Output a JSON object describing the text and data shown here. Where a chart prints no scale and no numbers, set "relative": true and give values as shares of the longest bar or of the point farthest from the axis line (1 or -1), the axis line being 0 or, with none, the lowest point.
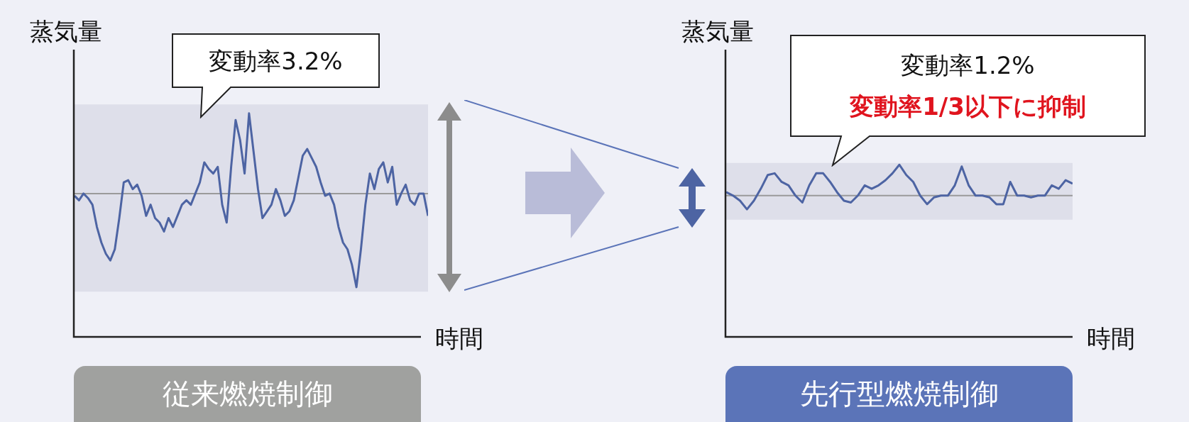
{
  "chart_data": [
    {
      "type": "line",
      "subtitle": "従来燃焼制御",
      "xlabel": "時間",
      "ylabel": "蒸気量",
      "relative": true,
      "annotations": [
        "変動率3.2%"
      ],
      "categories": [
        null,
        null,
        null,
        null,
        null,
        null,
        null,
        null,
        null,
        null,
        null,
        null,
        null,
        null,
        null,
        null,
        null,
        null,
        null,
        null,
        null,
        null,
        null,
        null,
        null,
        null,
        null,
        null,
        null,
        null,
        null,
        null,
        null,
        null,
        null,
        null,
        null,
        null,
        null,
        null,
        null,
        null,
        null,
        null,
        null,
        null,
        null,
        null,
        null,
        null,
        null,
        null,
        null,
        null,
        null,
        null,
        null,
        null,
        null,
        null,
        null,
        null,
        null,
        null,
        null,
        null,
        null,
        null,
        null,
        null,
        null,
        null,
        null,
        null,
        null,
        null,
        null,
        null,
        null,
        null
      ],
      "series": [
        {
          "color": "#4d64a3",
          "values": [
            0.63,
            0.61,
            0.64,
            0.62,
            0.59,
            0.49,
            0.42,
            0.37,
            0.34,
            0.39,
            0.53,
            0.69,
            0.7,
            0.66,
            0.68,
            0.63,
            0.54,
            0.59,
            0.53,
            0.51,
            0.47,
            0.53,
            0.49,
            0.54,
            0.59,
            0.61,
            0.59,
            0.64,
            0.69,
            0.78,
            0.75,
            0.73,
            0.76,
            0.59,
            0.51,
            0.76,
            0.97,
            0.88,
            0.73,
            1,
            0.83,
            0.66,
            0.53,
            0.56,
            0.59,
            0.66,
            0.61,
            0.54,
            0.56,
            0.61,
            0.71,
            0.81,
            0.84,
            0.8,
            0.76,
            0.69,
            0.63,
            0.64,
            0.59,
            0.49,
            0.42,
            0.39,
            0.32,
            0.22,
            0.39,
            0.59,
            0.73,
            0.66,
            0.75,
            0.78,
            0.69,
            0.76,
            0.59,
            0.64,
            0.68,
            0.61,
            0.59,
            0.64,
            0.64,
            0.54
          ]
        }
      ],
      "bands": [
        {
          "axis": "y",
          "from": 0.2,
          "to": 1.04,
          "color": "#dedfea"
        }
      ],
      "ref_lines": [
        {
          "axis": "y",
          "value": 0.64,
          "color": "#9a9a9a"
        }
      ]
    },
    {
      "type": "line",
      "subtitle": "先行型燃焼制御",
      "xlabel": "時間",
      "ylabel": "蒸気量",
      "relative": true,
      "annotations": [
        "変動率1.2%",
        "変動率1/3以下に抑制"
      ],
      "categories": [
        null,
        null,
        null,
        null,
        null,
        null,
        null,
        null,
        null,
        null,
        null,
        null,
        null,
        null,
        null,
        null,
        null,
        null,
        null,
        null,
        null,
        null,
        null,
        null,
        null,
        null,
        null,
        null,
        null,
        null,
        null,
        null,
        null,
        null,
        null,
        null,
        null,
        null,
        null,
        null,
        null,
        null,
        null,
        null,
        null,
        null,
        null,
        null,
        null,
        null,
        null
      ],
      "series": [
        {
          "color": "#4d64a3",
          "values": [
            0.84,
            0.82,
            0.79,
            0.74,
            0.79,
            0.86,
            0.94,
            0.95,
            0.9,
            0.88,
            0.82,
            0.78,
            0.88,
            0.95,
            0.95,
            0.9,
            0.84,
            0.79,
            0.78,
            0.82,
            0.88,
            0.86,
            0.88,
            0.91,
            0.95,
            1,
            0.94,
            0.9,
            0.82,
            0.77,
            0.81,
            0.82,
            0.82,
            0.88,
            0.99,
            0.88,
            0.82,
            0.82,
            0.81,
            0.77,
            0.77,
            0.9,
            0.82,
            0.82,
            0.81,
            0.82,
            0.82,
            0.88,
            0.86,
            0.91,
            0.89
          ]
        }
      ],
      "bands": [
        {
          "axis": "y",
          "from": 0.68,
          "to": 1.01,
          "color": "#dedfea"
        }
      ],
      "ref_lines": [
        {
          "axis": "y",
          "value": 0.82,
          "color": "#9a9a9a"
        }
      ]
    }
  ]
}
